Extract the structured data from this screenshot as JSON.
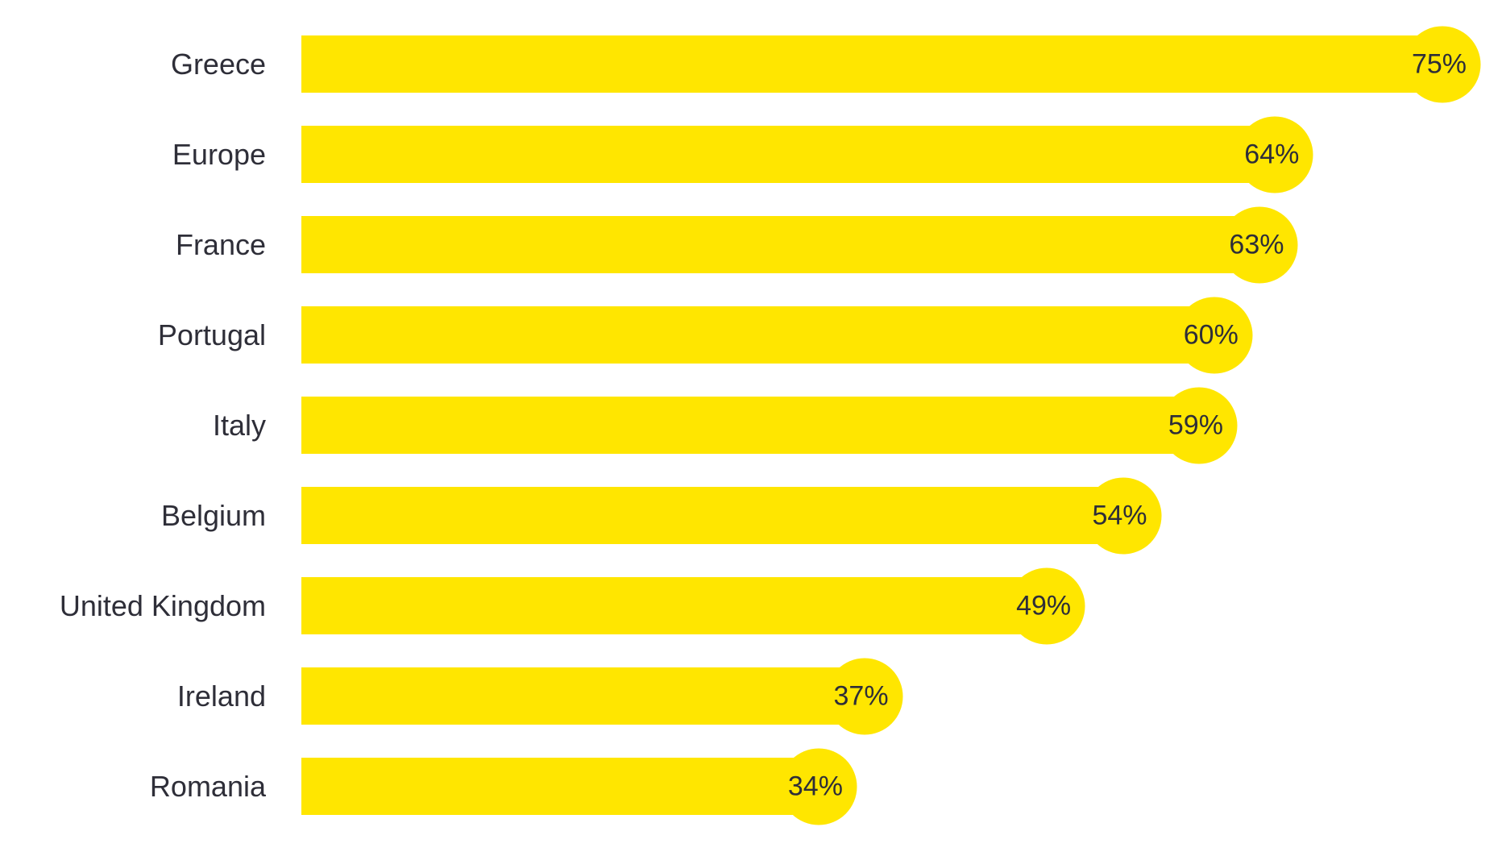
{
  "chart_data": {
    "type": "bar",
    "orientation": "horizontal",
    "categories": [
      "Greece",
      "Europe",
      "France",
      "Portugal",
      "Italy",
      "Belgium",
      "United Kingdom",
      "Ireland",
      "Romania"
    ],
    "values": [
      75,
      64,
      63,
      60,
      59,
      54,
      49,
      37,
      34
    ],
    "value_labels": [
      "75%",
      "64%",
      "63%",
      "60%",
      "59%",
      "54%",
      "49%",
      "37%",
      "34%"
    ],
    "value_suffix": "%",
    "title": "",
    "xlabel": "",
    "ylabel": "",
    "xlim": [
      0,
      75
    ],
    "grid": false,
    "legend": false,
    "bar_color": "#ffe600",
    "text_color": "#2e2e38",
    "background_color": "#ffffff",
    "bar_end_style": "circle-cap-with-value-label"
  }
}
